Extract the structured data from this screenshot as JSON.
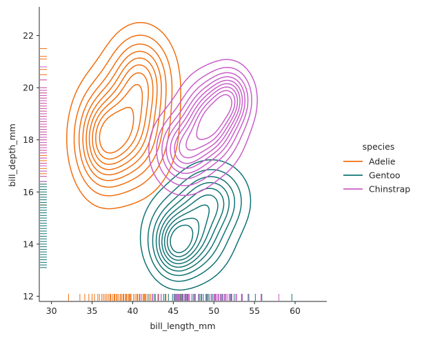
{
  "chart_data": {
    "type": "kde_contour",
    "xlabel": "bill_length_mm",
    "ylabel": "bill_depth_mm",
    "xlim": [
      28.5,
      63.9
    ],
    "ylim": [
      11.8,
      23.1
    ],
    "xticks": [
      30,
      35,
      40,
      45,
      50,
      55,
      60
    ],
    "yticks": [
      12,
      14,
      16,
      18,
      20,
      22
    ],
    "legend": {
      "title": "species",
      "placement": "right",
      "entries": [
        "Adelie",
        "Gentoo",
        "Chinstrap"
      ]
    },
    "series": [
      {
        "name": "Adelie",
        "color": "#f06e0e",
        "density_peaks": [
          {
            "x": 39.3,
            "y": 18.4,
            "sx": 2.8,
            "sy": 1.25
          },
          {
            "x": 36.2,
            "y": 17.9,
            "sx": 1.9,
            "sy": 1.1
          },
          {
            "x": 41.0,
            "y": 20.4,
            "sx": 2.2,
            "sy": 1.0
          }
        ],
        "rug_x": [
          32.1,
          33.5,
          34.1,
          34.6,
          35.0,
          35.3,
          35.7,
          35.9,
          36.2,
          36.4,
          36.6,
          36.8,
          37.0,
          37.2,
          37.3,
          37.5,
          37.7,
          37.8,
          38.0,
          38.1,
          38.3,
          38.5,
          38.6,
          38.8,
          38.9,
          39.1,
          39.2,
          39.3,
          39.5,
          39.6,
          39.7,
          39.8,
          40.1,
          40.3,
          40.5,
          40.6,
          40.8,
          40.9,
          41.1,
          41.3,
          41.4,
          41.5,
          41.6,
          41.8,
          42.0,
          42.2,
          42.5,
          42.8,
          43.1,
          44.1,
          45.8,
          46.0
        ],
        "rug_y": [
          15.5,
          15.9,
          16.1,
          16.3,
          16.6,
          16.7,
          16.9,
          17.0,
          17.1,
          17.2,
          17.3,
          17.4,
          17.5,
          17.6,
          17.7,
          17.8,
          17.9,
          18.0,
          18.1,
          18.2,
          18.3,
          18.4,
          18.5,
          18.6,
          18.7,
          18.8,
          18.9,
          19.0,
          19.1,
          19.2,
          19.3,
          19.4,
          19.5,
          19.6,
          19.7,
          19.8,
          19.9,
          20.0,
          20.3,
          20.5,
          20.7,
          21.1,
          21.2,
          21.5
        ]
      },
      {
        "name": "Gentoo",
        "color": "#107273",
        "density_peaks": [
          {
            "x": 46.9,
            "y": 14.4,
            "sx": 2.6,
            "sy": 0.9
          },
          {
            "x": 49.8,
            "y": 15.7,
            "sx": 2.3,
            "sy": 0.75
          },
          {
            "x": 45.2,
            "y": 13.9,
            "sx": 1.6,
            "sy": 0.7
          }
        ],
        "rug_x": [
          40.9,
          42.0,
          42.7,
          43.2,
          43.5,
          43.8,
          44.0,
          44.4,
          44.9,
          45.1,
          45.3,
          45.5,
          45.7,
          45.9,
          46.1,
          46.2,
          46.4,
          46.5,
          46.7,
          46.8,
          47.0,
          47.3,
          47.5,
          47.7,
          48.1,
          48.2,
          48.4,
          48.5,
          48.7,
          49.0,
          49.1,
          49.3,
          49.5,
          49.8,
          50.0,
          50.2,
          50.5,
          50.8,
          51.1,
          51.3,
          51.5,
          52.1,
          52.2,
          52.5,
          53.4,
          54.3,
          55.1,
          55.9,
          59.6
        ],
        "rug_y": [
          13.1,
          13.2,
          13.3,
          13.4,
          13.5,
          13.6,
          13.7,
          13.8,
          13.9,
          14.0,
          14.1,
          14.2,
          14.3,
          14.4,
          14.5,
          14.6,
          14.7,
          14.8,
          14.9,
          15.0,
          15.1,
          15.2,
          15.3,
          15.4,
          15.5,
          15.6,
          15.7,
          15.8,
          15.9,
          16.0,
          16.1,
          16.2,
          16.3,
          16.4,
          16.8,
          17.0
        ]
      },
      {
        "name": "Chinstrap",
        "color": "#c85ec8",
        "density_peaks": [
          {
            "x": 49.6,
            "y": 18.7,
            "sx": 2.0,
            "sy": 0.9
          },
          {
            "x": 46.3,
            "y": 17.6,
            "sx": 2.0,
            "sy": 0.8
          },
          {
            "x": 52.0,
            "y": 19.6,
            "sx": 1.5,
            "sy": 0.65
          }
        ],
        "rug_x": [
          40.9,
          42.4,
          42.5,
          43.2,
          43.5,
          45.2,
          45.4,
          45.5,
          45.6,
          45.7,
          46.0,
          46.1,
          46.4,
          46.6,
          46.8,
          46.9,
          47.0,
          47.5,
          47.6,
          48.1,
          48.5,
          49.0,
          49.2,
          49.5,
          49.7,
          50.0,
          50.1,
          50.2,
          50.3,
          50.5,
          50.6,
          50.8,
          50.9,
          51.0,
          51.3,
          51.4,
          51.5,
          51.7,
          51.9,
          52.0,
          52.2,
          52.7,
          52.8,
          53.5,
          54.2,
          55.8,
          58.0
        ],
        "rug_y": [
          16.4,
          16.6,
          16.8,
          17.0,
          17.1,
          17.3,
          17.5,
          17.6,
          17.7,
          17.8,
          17.9,
          18.0,
          18.1,
          18.2,
          18.3,
          18.4,
          18.5,
          18.6,
          18.7,
          18.8,
          18.9,
          19.0,
          19.1,
          19.2,
          19.3,
          19.4,
          19.5,
          19.6,
          19.7,
          19.8,
          19.9,
          20.0,
          20.3,
          20.8
        ]
      }
    ],
    "contour_levels": [
      0.06,
      0.15,
      0.25,
      0.35,
      0.45,
      0.55,
      0.65,
      0.75,
      0.85
    ],
    "grid": false
  }
}
